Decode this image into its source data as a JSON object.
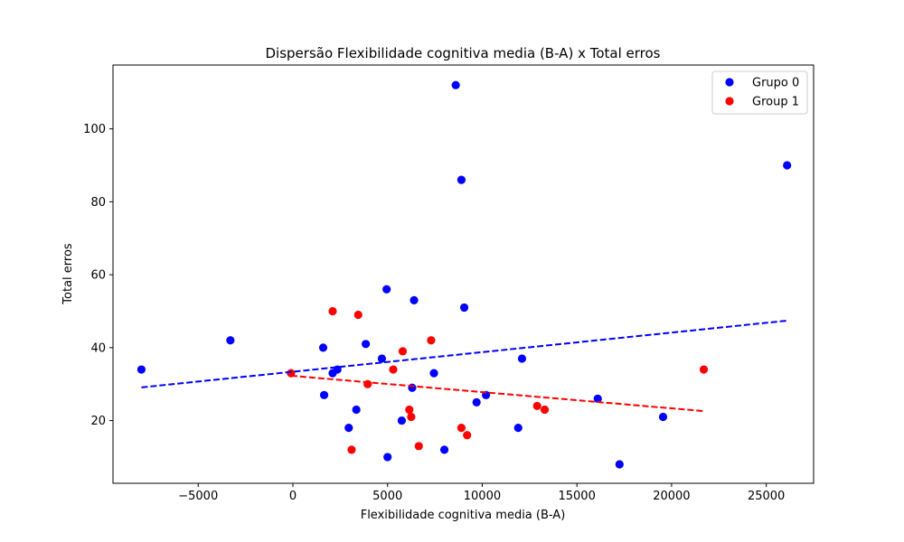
{
  "chart_data": {
    "type": "scatter",
    "title": "Dispersão Flexibilidade cognitiva media (B-A) x Total erros",
    "xlabel": "Flexibilidade cognitiva media (B-A)",
    "ylabel": "Total erros",
    "xlim": [
      -9500,
      27500
    ],
    "ylim": [
      2.8,
      117.5
    ],
    "xticks": [
      -5000,
      0,
      5000,
      10000,
      15000,
      20000,
      25000
    ],
    "xtick_labels": [
      "−5000",
      "0",
      "5000",
      "10000",
      "15000",
      "20000",
      "25000"
    ],
    "yticks": [
      20,
      40,
      60,
      80,
      100
    ],
    "ytick_labels": [
      "20",
      "40",
      "60",
      "80",
      "100"
    ],
    "grid": false,
    "legend_position": "top-right",
    "series": [
      {
        "name": "Grupo 0",
        "color": "#0000ff",
        "points": [
          [
            -8000,
            34
          ],
          [
            -3300,
            42
          ],
          [
            1600,
            40
          ],
          [
            1650,
            27
          ],
          [
            2100,
            33
          ],
          [
            2350,
            34
          ],
          [
            2950,
            18
          ],
          [
            3350,
            23
          ],
          [
            3850,
            41
          ],
          [
            4700,
            37
          ],
          [
            4950,
            56
          ],
          [
            5000,
            10
          ],
          [
            5750,
            20
          ],
          [
            6300,
            29
          ],
          [
            6400,
            53
          ],
          [
            7450,
            33
          ],
          [
            8000,
            12
          ],
          [
            8600,
            112
          ],
          [
            8900,
            86
          ],
          [
            9050,
            51
          ],
          [
            9700,
            25
          ],
          [
            10200,
            27
          ],
          [
            11900,
            18
          ],
          [
            12100,
            37
          ],
          [
            16100,
            26
          ],
          [
            17250,
            8
          ],
          [
            19550,
            21
          ],
          [
            26100,
            90
          ]
        ],
        "trend": {
          "x": [
            -8000,
            26100
          ],
          "y": [
            29.1,
            47.4
          ]
        }
      },
      {
        "name": "Group 1",
        "color": "#ff0000",
        "points": [
          [
            -100,
            33
          ],
          [
            2100,
            50
          ],
          [
            3100,
            12
          ],
          [
            3450,
            49
          ],
          [
            3950,
            30
          ],
          [
            5300,
            34
          ],
          [
            5800,
            39
          ],
          [
            6150,
            23
          ],
          [
            6250,
            21
          ],
          [
            6650,
            13
          ],
          [
            7300,
            42
          ],
          [
            8900,
            18
          ],
          [
            9200,
            16
          ],
          [
            12900,
            24
          ],
          [
            13300,
            23
          ],
          [
            21700,
            34
          ]
        ],
        "trend": {
          "x": [
            -100,
            21700
          ],
          "y": [
            32.3,
            22.6
          ]
        }
      }
    ]
  }
}
